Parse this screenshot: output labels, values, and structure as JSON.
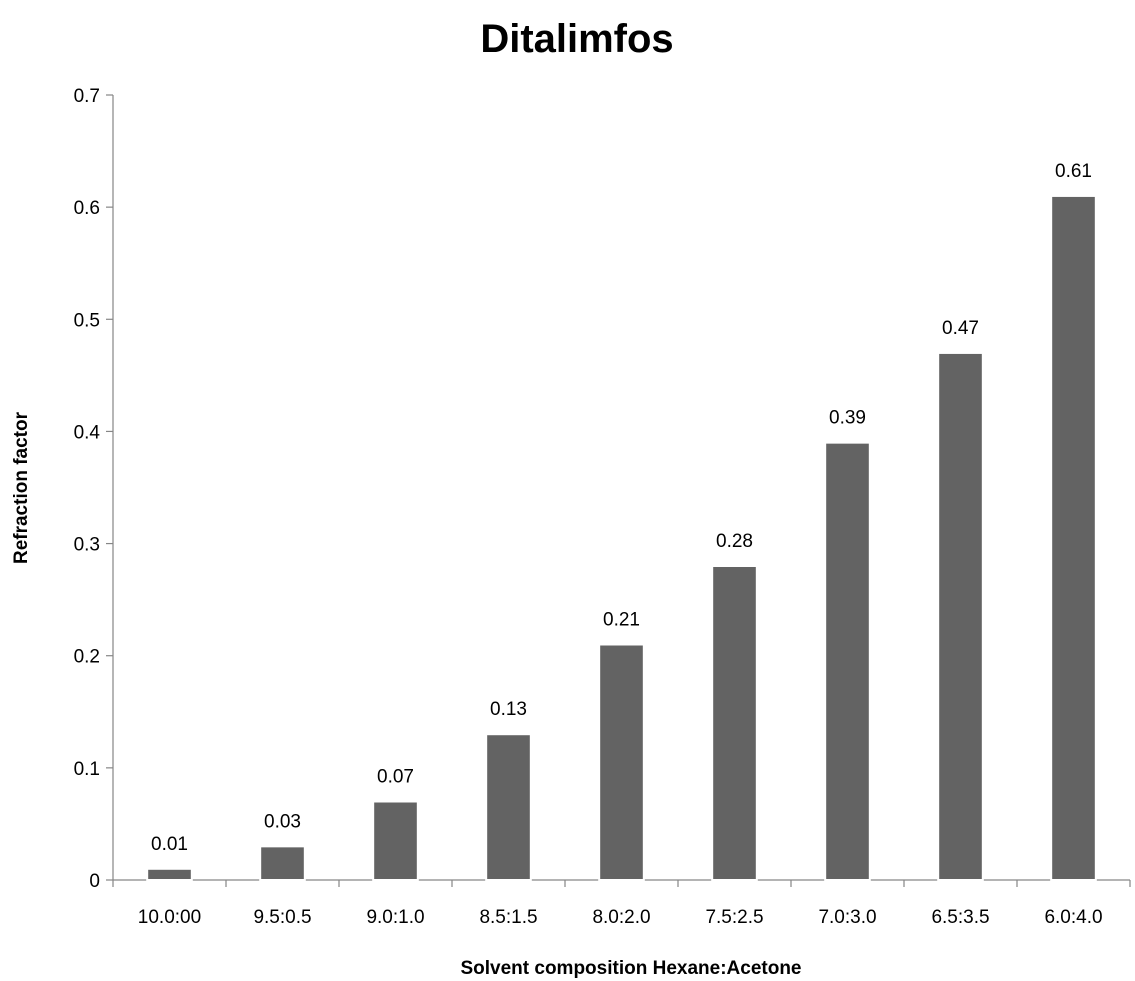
{
  "chart_data": {
    "type": "bar",
    "title": "Ditalimfos",
    "xlabel": "Solvent composition Hexane:Acetone",
    "ylabel": "Refraction factor",
    "categories": [
      "10.0:00",
      "9.5:0.5",
      "9.0:1.0",
      "8.5:1.5",
      "8.0:2.0",
      "7.5:2.5",
      "7.0:3.0",
      "6.5:3.5",
      "6.0:4.0"
    ],
    "values": [
      0.01,
      0.03,
      0.07,
      0.13,
      0.21,
      0.28,
      0.39,
      0.47,
      0.61
    ],
    "value_labels": [
      "0.01",
      "0.03",
      "0.07",
      "0.13",
      "0.21",
      "0.28",
      "0.39",
      "0.47",
      "0.61"
    ],
    "ylim": [
      0,
      0.7
    ],
    "yticks": [
      0,
      0.1,
      0.2,
      0.3,
      0.4,
      0.5,
      0.6,
      0.7
    ],
    "ytick_labels": [
      "0",
      "0.1",
      "0.2",
      "0.3",
      "0.4",
      "0.5",
      "0.6",
      "0.7"
    ],
    "grid": false,
    "legend": "none",
    "colors": {
      "bar": "#636363",
      "bar_edge": "#ffffff",
      "axis": "#868686",
      "text": "#000000"
    }
  }
}
